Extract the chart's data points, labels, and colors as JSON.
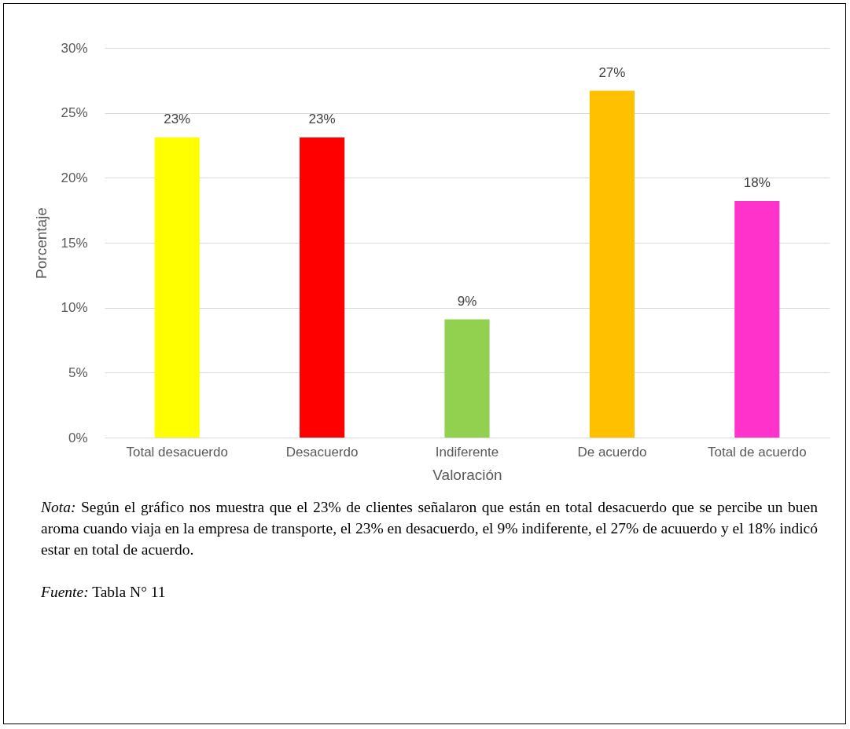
{
  "chart_data": {
    "type": "bar",
    "xlabel": "Valoración",
    "ylabel": "Porcentaje",
    "categories": [
      "Total desacuerdo",
      "Desacuerdo",
      "Indiferente",
      "De acuerdo",
      "Total de acuerdo"
    ],
    "values": [
      23.1,
      23.1,
      9.1,
      26.7,
      18.2
    ],
    "value_labels": [
      "23%",
      "23%",
      "9%",
      "27%",
      "18%"
    ],
    "colors": [
      "#ffff00",
      "#ff0000",
      "#92d050",
      "#ffc000",
      "#ff33cc"
    ],
    "ylim": [
      0,
      30
    ],
    "yticks": [
      {
        "value": 0,
        "label": "0%"
      },
      {
        "value": 5,
        "label": "5%"
      },
      {
        "value": 10,
        "label": "10%"
      },
      {
        "value": 15,
        "label": "15%"
      },
      {
        "value": 20,
        "label": "20%"
      },
      {
        "value": 25,
        "label": "25%"
      },
      {
        "value": 30,
        "label": "30%"
      }
    ],
    "grid": "y",
    "annotations": [
      "Nota: Según el gráfico nos muestra que el 23% de clientes señalaron que están en total desacuerdo que se percibe un buen aroma cuando viaja en la empresa de transporte, el 23% en desacuerdo, el 9% indiferente, el 27% de acuuerdo y el 18% indicó estar en total de acuerdo.",
      "Fuente: Tabla N° 11"
    ]
  }
}
